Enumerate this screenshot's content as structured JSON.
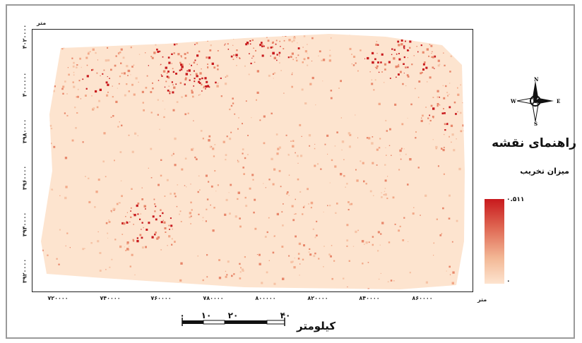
{
  "map": {
    "x_unit": "متر",
    "y_unit": "متر",
    "x_ticks": [
      "۷۲۰۰۰۰",
      "۷۴۰۰۰۰",
      "۷۶۰۰۰۰",
      "۷۸۰۰۰۰",
      "۸۰۰۰۰۰",
      "۸۲۰۰۰۰",
      "۸۴۰۰۰۰",
      "۸۶۰۰۰۰"
    ],
    "y_ticks": [
      "۴۰۲۰۰۰۰",
      "۴۰۰۰۰۰۰",
      "۳۹۸۰۰۰۰",
      "۳۹۶۰۰۰۰",
      "۳۹۴۰۰۰۰",
      "۳۹۲۰۰۰۰"
    ]
  },
  "legend": {
    "title": "راهنمای نقشه",
    "subtitle": "میزان تخریب",
    "max_label": "۰.۵۱۱",
    "min_label": "۰",
    "ramp_colors": [
      "#c8191d",
      "#e06a55",
      "#f3b896",
      "#fde4cf"
    ]
  },
  "north_arrow": {
    "n": "N",
    "s": "S",
    "e": "E",
    "w": "W"
  },
  "scalebar": {
    "labels": [
      "۰",
      "۱۰",
      "۲۰",
      "۴۰"
    ],
    "unit": "کیلومتر"
  },
  "colors": {
    "background_raster": "#fde4cf",
    "high_degradation": "#c8191d",
    "medium_degradation": "#e8876b"
  }
}
